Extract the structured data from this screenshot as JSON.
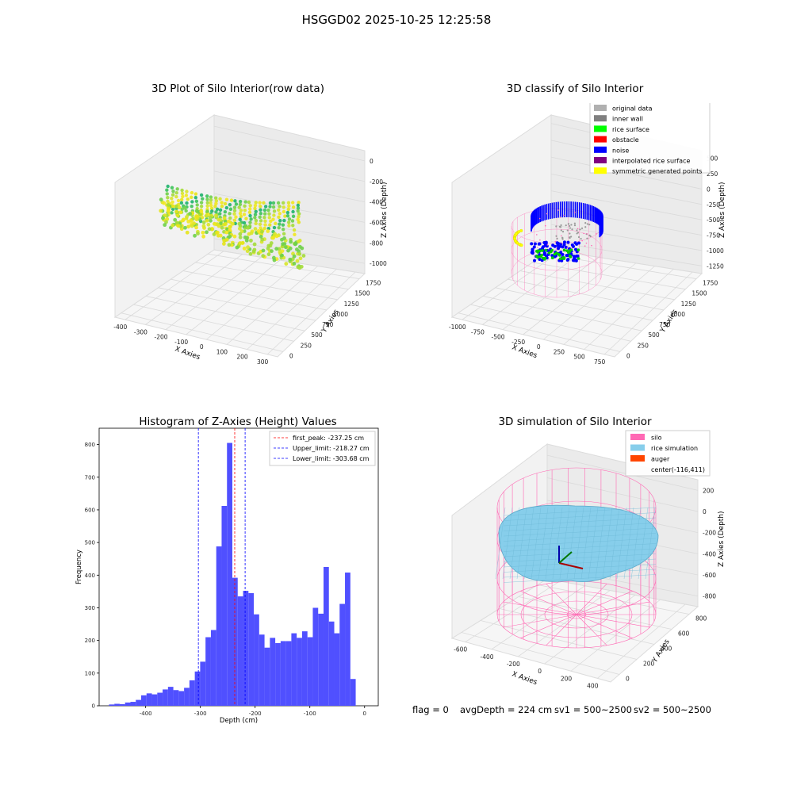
{
  "figure_title": "HSGGD02 2025-10-25 12:25:58",
  "footer": {
    "flag": "flag = 0",
    "avg_depth": "avgDepth = 224 cm",
    "sv1": "sv1 = 500~2500",
    "sv2": "sv2 = 500~2500"
  },
  "colors": {
    "hist_bar": "#5050ff",
    "peak_line": "#ff0000",
    "limit_line": "#0000ff",
    "silo": "#ff69b4",
    "rice": "#87ceeb",
    "auger": "#ff4500"
  },
  "chart_data": [
    {
      "type": "scatter",
      "projection": "3d",
      "title": "3D Plot of Silo Interior(row data)",
      "xlabel": "X Axies",
      "ylabel": "Y Axies",
      "zlabel": "Z Axies (Depth)",
      "x_ticks": [
        "-400",
        "-300",
        "-200",
        "-100",
        "0",
        "100",
        "200",
        "300"
      ],
      "y_ticks": [
        "0",
        "250",
        "500",
        "750",
        "1000",
        "1250",
        "1500",
        "1750"
      ],
      "z_ticks": [
        "0",
        "-200",
        "-400",
        "-600",
        "-800",
        "-1000"
      ],
      "colormap": "green-yellow by depth",
      "grid": true
    },
    {
      "type": "scatter",
      "projection": "3d",
      "title": "3D classify of Silo Interior",
      "xlabel": "X Axies",
      "ylabel": "Y Axies",
      "zlabel": "Z Axies (Depth)",
      "x_ticks": [
        "-1000",
        "-750",
        "-500",
        "-250",
        "0",
        "250",
        "500",
        "750"
      ],
      "y_ticks": [
        "0",
        "250",
        "500",
        "750",
        "1000",
        "1250",
        "1500",
        "1750"
      ],
      "z_ticks": [
        "500",
        "250",
        "0",
        "-250",
        "-500",
        "-750",
        "-1000",
        "-1250"
      ],
      "legend": {
        "position": "top-right",
        "entries": [
          {
            "label": "original data",
            "color": "#b0b0b0"
          },
          {
            "label": "inner wall",
            "color": "#808080"
          },
          {
            "label": "rice surface",
            "color": "#00ff00"
          },
          {
            "label": "obstacle",
            "color": "#ff0000"
          },
          {
            "label": "noise",
            "color": "#0000ff"
          },
          {
            "label": "interpolated rice surface",
            "color": "#800080"
          },
          {
            "label": "symmetric generated points",
            "color": "#ffff00"
          }
        ]
      },
      "grid": true
    },
    {
      "type": "bar",
      "subtype": "histogram",
      "title": "Histogram of Z-Axies (Height) Values",
      "xlabel": "Depth (cm)",
      "ylabel": "Frequency",
      "xlim": [
        -485,
        25
      ],
      "ylim": [
        0,
        850
      ],
      "x_ticks": [
        -400,
        -300,
        -200,
        -100,
        0
      ],
      "y_ticks": [
        0,
        100,
        200,
        300,
        400,
        500,
        600,
        700,
        800
      ],
      "bin_width": 9.8,
      "bin_edges_start": -467,
      "values": [
        4,
        6,
        5,
        10,
        12,
        18,
        32,
        38,
        35,
        40,
        50,
        58,
        48,
        45,
        55,
        78,
        105,
        135,
        210,
        232,
        488,
        612,
        805,
        392,
        335,
        352,
        345,
        280,
        218,
        178,
        208,
        192,
        198,
        198,
        222,
        208,
        228,
        210,
        300,
        282,
        425,
        258,
        222,
        312,
        408,
        82
      ],
      "vlines": [
        {
          "label": "first_peak: -237.25 cm",
          "x": -237.25,
          "color": "#ff0000"
        },
        {
          "label": "Upper_limit: -218.27 cm",
          "x": -218.27,
          "color": "#0000ff"
        },
        {
          "label": "Lower_limit: -303.68 cm",
          "x": -303.68,
          "color": "#0000ff"
        }
      ],
      "legend_position": "top-right",
      "grid": false
    },
    {
      "type": "surface",
      "projection": "3d",
      "title": "3D simulation of Silo Interior",
      "xlabel": "X Axies",
      "ylabel": "Y Axies",
      "zlabel": "Z Axies (Depth)",
      "x_ticks": [
        "-600",
        "-400",
        "-200",
        "0",
        "200",
        "400"
      ],
      "y_ticks": [
        "0",
        "200",
        "400",
        "600",
        "800"
      ],
      "z_ticks": [
        "200",
        "0",
        "-200",
        "-400",
        "-600",
        "-800"
      ],
      "legend": {
        "position": "top-right",
        "entries": [
          {
            "label": "silo",
            "color": "#ff69b4"
          },
          {
            "label": "rice simulation",
            "color": "#87ceeb"
          },
          {
            "label": "auger",
            "color": "#ff4500"
          },
          {
            "label": "center(-116,411)",
            "color": ""
          }
        ]
      },
      "grid": true
    }
  ]
}
